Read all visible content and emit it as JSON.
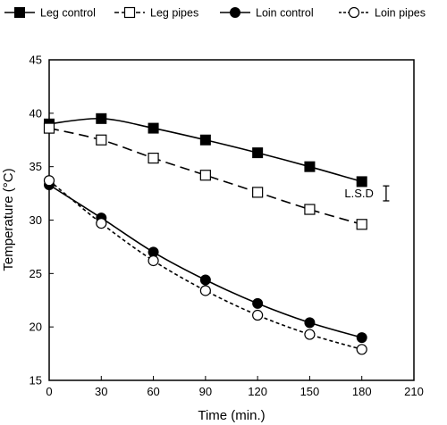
{
  "chart_data": {
    "type": "line",
    "xlabel": "Time (min.)",
    "ylabel": "Temperature (°C)",
    "xlim": [
      0,
      210
    ],
    "ylim": [
      15,
      45
    ],
    "xticks": [
      0,
      30,
      60,
      90,
      120,
      150,
      180,
      210
    ],
    "yticks": [
      15,
      20,
      25,
      30,
      35,
      40,
      45
    ],
    "legend_position": "top",
    "x": [
      0,
      30,
      60,
      90,
      120,
      150,
      180
    ],
    "series": [
      {
        "name": "Leg control",
        "values": [
          39.0,
          39.5,
          38.6,
          37.5,
          36.3,
          35.0,
          33.6
        ],
        "marker": "square-filled",
        "line": "solid"
      },
      {
        "name": "Leg pipes",
        "values": [
          38.6,
          37.5,
          35.8,
          34.2,
          32.6,
          31.0,
          29.6
        ],
        "marker": "square-open",
        "line": "dashed"
      },
      {
        "name": "Loin control",
        "values": [
          33.3,
          30.2,
          27.0,
          24.4,
          22.2,
          20.4,
          19.0
        ],
        "marker": "circle-filled",
        "line": "solid"
      },
      {
        "name": "Loin pipes",
        "values": [
          33.7,
          29.7,
          26.2,
          23.4,
          21.1,
          19.3,
          17.9
        ],
        "marker": "circle-open",
        "line": "dotted"
      }
    ],
    "annotation": {
      "label": "L.S.D",
      "x": 194,
      "y_low": 31.8,
      "y_high": 33.2
    }
  }
}
